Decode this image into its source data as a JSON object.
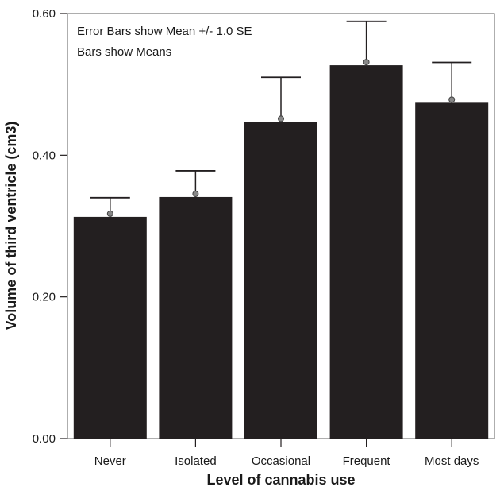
{
  "chart_data": {
    "type": "bar",
    "title": "",
    "xlabel": "Level of cannabis use",
    "ylabel": "Volume of third ventricle (cm3)",
    "ylim": [
      0,
      0.6
    ],
    "yticks": [
      "0.00",
      "0.20",
      "0.40",
      "0.60"
    ],
    "ytick_values": [
      0,
      0.2,
      0.4,
      0.6
    ],
    "grid": false,
    "categories": [
      "Never",
      "Isolated",
      "Occasional",
      "Frequent",
      "Most days"
    ],
    "values": [
      0.313,
      0.341,
      0.447,
      0.527,
      0.474
    ],
    "error_upper": [
      0.34,
      0.378,
      0.51,
      0.589,
      0.531
    ],
    "error_type": "Mean +/- 1.0 SE",
    "annotations": [
      "Error Bars show Mean +/- 1.0 SE",
      "Bars show Means"
    ],
    "bar_color": "#231f20",
    "marker_color": "#888888"
  }
}
